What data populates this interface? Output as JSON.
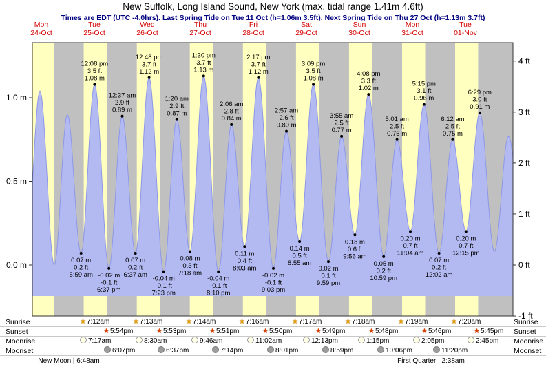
{
  "title": "New Suffolk, Long Island Sound, New York (max. tidal range 1.41m 4.6ft)",
  "subtitle": "Times are EDT (UTC -4.0hrs). Last Spring Tide on Tue 11 Oct (h=1.06m 3.5ft). Next Spring Tide on Thu 27 Oct (h=1.13m 3.7ft)",
  "days": [
    {
      "dow": "Mon",
      "date": "24-Oct"
    },
    {
      "dow": "Tue",
      "date": "25-Oct"
    },
    {
      "dow": "Wed",
      "date": "26-Oct"
    },
    {
      "dow": "Thu",
      "date": "27-Oct"
    },
    {
      "dow": "Fri",
      "date": "28-Oct"
    },
    {
      "dow": "Sat",
      "date": "29-Oct"
    },
    {
      "dow": "Sun",
      "date": "30-Oct"
    },
    {
      "dow": "Mon",
      "date": "31-Oct"
    },
    {
      "dow": "Tue",
      "date": "01-Nov"
    }
  ],
  "chart_data": {
    "type": "area",
    "title": "Tide height curve for New Suffolk, Long Island Sound, New York",
    "time_origin": "Mon 24 Oct 00:00 EDT, t in hours",
    "y_axis_left": {
      "unit": "m",
      "ticks": [
        0.0,
        0.5,
        1.0
      ]
    },
    "y_axis_right": {
      "unit": "ft",
      "ticks": [
        -1,
        0,
        1,
        2,
        3,
        4
      ]
    },
    "max_tidal_range": "1.41m 4.6ft",
    "tide_events": [
      {
        "t": 5.25,
        "m": 0.08,
        "type": "low",
        "show": false
      },
      {
        "t": 11.38,
        "m": 1.04,
        "type": "high",
        "show": false
      },
      {
        "t": 17.87,
        "m": 0.0,
        "type": "low",
        "show": false
      },
      {
        "t": 23.8,
        "m": 0.9,
        "type": "high",
        "show": false
      },
      {
        "t": 29.983,
        "m": 0.07,
        "type": "low",
        "show": true,
        "time": "5:59 am",
        "ft": "0.2 ft",
        "m_label": "0.07 m"
      },
      {
        "t": 36.133,
        "m": 1.08,
        "type": "high",
        "show": true,
        "time": "12:08 pm",
        "ft": "3.5 ft",
        "m_label": "1.08 m"
      },
      {
        "t": 42.617,
        "m": -0.02,
        "type": "low",
        "show": true,
        "time": "6:37 pm",
        "ft": "-0.1 ft",
        "m_label": "-0.02 m"
      },
      {
        "t": 48.617,
        "m": 0.89,
        "type": "high",
        "show": true,
        "time": "12:37 am",
        "ft": "2.9 ft",
        "m_label": "0.89 m"
      },
      {
        "t": 54.617,
        "m": 0.07,
        "type": "low",
        "show": true,
        "time": "6:37 am",
        "ft": "0.2 ft",
        "m_label": "0.07 m"
      },
      {
        "t": 60.8,
        "m": 1.12,
        "type": "high",
        "show": true,
        "time": "12:48 pm",
        "ft": "3.7 ft",
        "m_label": "1.12 m"
      },
      {
        "t": 67.383,
        "m": -0.04,
        "type": "low",
        "show": true,
        "time": "7:23 pm",
        "ft": "-0.1 ft",
        "m_label": "-0.04 m"
      },
      {
        "t": 73.333,
        "m": 0.87,
        "type": "high",
        "show": true,
        "time": "1:20 am",
        "ft": "2.9 ft",
        "m_label": "0.87 m"
      },
      {
        "t": 79.3,
        "m": 0.08,
        "type": "low",
        "show": true,
        "time": "7:18 am",
        "ft": "0.3 ft",
        "m_label": "0.08 m"
      },
      {
        "t": 85.5,
        "m": 1.13,
        "type": "high",
        "show": true,
        "time": "1:30 pm",
        "ft": "3.7 ft",
        "m_label": "1.13 m"
      },
      {
        "t": 92.167,
        "m": -0.04,
        "type": "low",
        "show": true,
        "time": "8:10 pm",
        "ft": "-0.1 ft",
        "m_label": "-0.04 m"
      },
      {
        "t": 98.1,
        "m": 0.84,
        "type": "high",
        "show": true,
        "time": "2:06 am",
        "ft": "2.8 ft",
        "m_label": "0.84 m"
      },
      {
        "t": 104.05,
        "m": 0.11,
        "type": "low",
        "show": true,
        "time": "8:03 am",
        "ft": "0.4 ft",
        "m_label": "0.11 m"
      },
      {
        "t": 110.283,
        "m": 1.12,
        "type": "high",
        "show": true,
        "time": "2:17 pm",
        "ft": "3.7 ft",
        "m_label": "1.12 m"
      },
      {
        "t": 117.05,
        "m": -0.02,
        "type": "low",
        "show": true,
        "time": "9:03 pm",
        "ft": "-0.1 ft",
        "m_label": "-0.02 m"
      },
      {
        "t": 122.95,
        "m": 0.8,
        "type": "high",
        "show": true,
        "time": "2:57 am",
        "ft": "2.6 ft",
        "m_label": "0.80 m"
      },
      {
        "t": 128.917,
        "m": 0.14,
        "type": "low",
        "show": true,
        "time": "8:55 am",
        "ft": "0.5 ft",
        "m_label": "0.14 m"
      },
      {
        "t": 135.15,
        "m": 1.08,
        "type": "high",
        "show": true,
        "time": "3:09 pm",
        "ft": "3.5 ft",
        "m_label": "1.08 m"
      },
      {
        "t": 141.983,
        "m": 0.02,
        "type": "low",
        "show": true,
        "time": "9:59 pm",
        "ft": "0.1 ft",
        "m_label": "0.02 m"
      },
      {
        "t": 147.917,
        "m": 0.77,
        "type": "high",
        "show": true,
        "time": "3:55 am",
        "ft": "2.5 ft",
        "m_label": "0.77 m"
      },
      {
        "t": 153.933,
        "m": 0.18,
        "type": "low",
        "show": true,
        "time": "9:56 am",
        "ft": "0.6 ft",
        "m_label": "0.18 m"
      },
      {
        "t": 160.133,
        "m": 1.02,
        "type": "high",
        "show": true,
        "time": "4:08 pm",
        "ft": "3.3 ft",
        "m_label": "1.02 m"
      },
      {
        "t": 166.983,
        "m": 0.05,
        "type": "low",
        "show": true,
        "time": "10:59 pm",
        "ft": "0.2 ft",
        "m_label": "0.05 m"
      },
      {
        "t": 173.017,
        "m": 0.75,
        "type": "high",
        "show": true,
        "time": "5:01 am",
        "ft": "2.5 ft",
        "m_label": "0.75 m"
      },
      {
        "t": 179.067,
        "m": 0.2,
        "type": "low",
        "show": true,
        "time": "11:04 am",
        "ft": "0.7 ft",
        "m_label": "0.20 m"
      },
      {
        "t": 185.25,
        "m": 0.96,
        "type": "high",
        "show": true,
        "time": "5:15 pm",
        "ft": "3.1 ft",
        "m_label": "0.96 m"
      },
      {
        "t": 192.033,
        "m": 0.07,
        "type": "low",
        "show": true,
        "time": "12:02 am",
        "ft": "0.2 ft",
        "m_label": "0.07 m"
      },
      {
        "t": 198.2,
        "m": 0.75,
        "type": "high",
        "show": true,
        "time": "6:12 am",
        "ft": "2.5 ft",
        "m_label": "0.75 m"
      },
      {
        "t": 204.25,
        "m": 0.2,
        "type": "low",
        "show": true,
        "time": "12:15 pm",
        "ft": "0.7 ft",
        "m_label": "0.20 m"
      },
      {
        "t": 210.483,
        "m": 0.91,
        "type": "high",
        "show": true,
        "time": "6:29 pm",
        "ft": "3.0 ft",
        "m_label": "0.91 m"
      },
      {
        "t": 217.083,
        "m": 0.08,
        "type": "low",
        "show": false
      },
      {
        "t": 223.5,
        "m": 0.77,
        "type": "high",
        "show": false
      },
      {
        "t": 229.7,
        "m": 0.22,
        "type": "low",
        "show": false
      }
    ],
    "daylight_bands": [
      {
        "day": 0,
        "sunrise_h": 7.183,
        "sunset_h": 17.917
      },
      {
        "day": 1,
        "sunrise_h": 7.2,
        "sunset_h": 17.9
      },
      {
        "day": 2,
        "sunrise_h": 7.217,
        "sunset_h": 17.883
      },
      {
        "day": 3,
        "sunrise_h": 7.233,
        "sunset_h": 17.85
      },
      {
        "day": 4,
        "sunrise_h": 7.267,
        "sunset_h": 17.833
      },
      {
        "day": 5,
        "sunrise_h": 7.283,
        "sunset_h": 17.817
      },
      {
        "day": 6,
        "sunrise_h": 7.3,
        "sunset_h": 17.8
      },
      {
        "day": 7,
        "sunrise_h": 7.317,
        "sunset_h": 17.767
      },
      {
        "day": 8,
        "sunrise_h": 7.333,
        "sunset_h": 17.75
      }
    ],
    "colors": {
      "plot_bg": "#c0c0c0",
      "day_band": "#ffffc0",
      "tide_fill": "#b3baf2",
      "tide_stroke": "#8d97e8",
      "day_label": "#d40000",
      "subtitle": "#000080",
      "frame": "#333333",
      "sunrise_star": "#dfa100",
      "sunset_star": "#d84000",
      "moonrise_fill": "#ffffe8",
      "moonset_fill": "#9c9c9c"
    }
  },
  "astro": {
    "rows": [
      {
        "id": "sunrise",
        "label": "Sunrise",
        "icon": "sunrise-star",
        "entries": [
          {
            "t": 31.2,
            "time": "7:12am"
          },
          {
            "t": 55.217,
            "time": "7:13am"
          },
          {
            "t": 79.233,
            "time": "7:14am"
          },
          {
            "t": 103.267,
            "time": "7:16am"
          },
          {
            "t": 127.283,
            "time": "7:17am"
          },
          {
            "t": 151.3,
            "time": "7:18am"
          },
          {
            "t": 175.317,
            "time": "7:19am"
          },
          {
            "t": 199.333,
            "time": "7:20am"
          }
        ]
      },
      {
        "id": "sunset",
        "label": "Sunset",
        "icon": "sunset-star",
        "entries": [
          {
            "t": 41.9,
            "time": "5:54pm"
          },
          {
            "t": 65.883,
            "time": "5:53pm"
          },
          {
            "t": 89.85,
            "time": "5:51pm"
          },
          {
            "t": 113.833,
            "time": "5:50pm"
          },
          {
            "t": 137.817,
            "time": "5:49pm"
          },
          {
            "t": 161.8,
            "time": "5:48pm"
          },
          {
            "t": 185.767,
            "time": "5:46pm"
          },
          {
            "t": 209.75,
            "time": "5:45pm"
          }
        ]
      },
      {
        "id": "moonrise",
        "label": "Moonrise",
        "icon": "moonrise-circle",
        "entries": [
          {
            "t": 31.283,
            "time": "7:17am"
          },
          {
            "t": 56.5,
            "time": "8:30am"
          },
          {
            "t": 81.767,
            "time": "9:46am"
          },
          {
            "t": 107.033,
            "time": "11:02am"
          },
          {
            "t": 132.217,
            "time": "12:13pm"
          },
          {
            "t": 157.25,
            "time": "1:15pm"
          },
          {
            "t": 182.083,
            "time": "2:05pm"
          },
          {
            "t": 206.75,
            "time": "2:45pm"
          }
        ]
      },
      {
        "id": "moonset",
        "label": "Moonset",
        "icon": "moonset-circle",
        "entries": [
          {
            "t": 42.117,
            "time": "6:07pm"
          },
          {
            "t": 66.617,
            "time": "6:37pm"
          },
          {
            "t": 91.233,
            "time": "7:14pm"
          },
          {
            "t": 116.017,
            "time": "8:01pm"
          },
          {
            "t": 140.983,
            "time": "8:59pm"
          },
          {
            "t": 166.1,
            "time": "10:06pm"
          },
          {
            "t": 191.333,
            "time": "11:20pm"
          }
        ]
      }
    ],
    "notes": [
      {
        "t": 30.8,
        "text": "New Moon | 6:48am"
      },
      {
        "t": 194.633,
        "text": "First Quarter | 2:38am"
      }
    ]
  }
}
